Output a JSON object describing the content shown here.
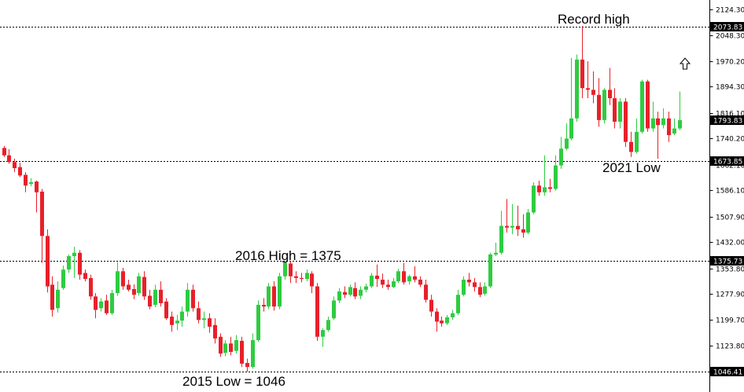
{
  "chart_data": {
    "type": "candlestick",
    "ylim": [
      1030,
      2140
    ],
    "grid": false,
    "colors": {
      "up": "#2ecc40",
      "down": "#e8202a",
      "axis": "#000000",
      "level_tag": "#000000"
    },
    "y_ticks": [
      2124.3,
      2048.3,
      1970.2,
      1894.3,
      1816.1,
      1740.2,
      1662.1,
      1586.1,
      1507.9,
      1432.0,
      1353.8,
      1277.9,
      1199.7,
      1123.8,
      1046.41
    ],
    "y_tick_labels": [
      "2124.30",
      "2048.30",
      "1970.20",
      "1894.30",
      "1816.10",
      "1740.20",
      "1662.10",
      "1586.10",
      "1507.90",
      "1432.00",
      "1353.80",
      "1277.90",
      "1199.70",
      "1123.80",
      "1046.41"
    ],
    "levels": [
      {
        "value": 2073.83,
        "label": "2073.83"
      },
      {
        "value": 1673.85,
        "label": "1673.85"
      },
      {
        "value": 1375.73,
        "label": "1375.73"
      },
      {
        "value": 1046.41,
        "label": "1046.41"
      }
    ],
    "last_price": {
      "value": 1793.83,
      "label": "1793.83"
    },
    "annotations": [
      {
        "text": "Record high"
      },
      {
        "text": "2021 Low"
      },
      {
        "text": "2016 High = 1375"
      },
      {
        "text": "2015 Low = 1046"
      }
    ],
    "candles": [
      [
        1712,
        1718,
        1690,
        1685
      ],
      [
        1690,
        1708,
        1670,
        1665
      ],
      [
        1670,
        1680,
        1652,
        1640
      ],
      [
        1655,
        1668,
        1630,
        1625
      ],
      [
        1632,
        1640,
        1600,
        1580
      ],
      [
        1605,
        1622,
        1610,
        1598
      ],
      [
        1612,
        1615,
        1580,
        1520
      ],
      [
        1582,
        1590,
        1450,
        1370
      ],
      [
        1450,
        1470,
        1300,
        1282
      ],
      [
        1305,
        1330,
        1230,
        1210
      ],
      [
        1235,
        1315,
        1290,
        1222
      ],
      [
        1295,
        1362,
        1350,
        1290
      ],
      [
        1350,
        1395,
        1390,
        1340
      ],
      [
        1390,
        1418,
        1400,
        1325
      ],
      [
        1400,
        1408,
        1335,
        1320
      ],
      [
        1340,
        1350,
        1322,
        1315
      ],
      [
        1325,
        1335,
        1270,
        1260
      ],
      [
        1270,
        1280,
        1230,
        1205
      ],
      [
        1235,
        1265,
        1255,
        1225
      ],
      [
        1258,
        1275,
        1220,
        1215
      ],
      [
        1220,
        1290,
        1280,
        1215
      ],
      [
        1280,
        1372,
        1345,
        1272
      ],
      [
        1345,
        1355,
        1300,
        1290
      ],
      [
        1305,
        1320,
        1290,
        1285
      ],
      [
        1292,
        1306,
        1275,
        1262
      ],
      [
        1280,
        1340,
        1330,
        1272
      ],
      [
        1328,
        1345,
        1270,
        1260
      ],
      [
        1272,
        1290,
        1240,
        1232
      ],
      [
        1245,
        1305,
        1290,
        1238
      ],
      [
        1290,
        1315,
        1250,
        1240
      ],
      [
        1255,
        1265,
        1205,
        1200
      ],
      [
        1210,
        1225,
        1185,
        1165
      ],
      [
        1190,
        1215,
        1198,
        1170
      ],
      [
        1198,
        1240,
        1225,
        1180
      ],
      [
        1225,
        1310,
        1290,
        1210
      ],
      [
        1290,
        1305,
        1235,
        1225
      ],
      [
        1235,
        1255,
        1200,
        1190
      ],
      [
        1200,
        1225,
        1205,
        1175
      ],
      [
        1205,
        1220,
        1180,
        1162
      ],
      [
        1185,
        1205,
        1145,
        1130
      ],
      [
        1150,
        1160,
        1100,
        1090
      ],
      [
        1102,
        1140,
        1130,
        1092
      ],
      [
        1130,
        1150,
        1105,
        1095
      ],
      [
        1108,
        1155,
        1140,
        1100
      ],
      [
        1138,
        1150,
        1070,
        1060
      ],
      [
        1072,
        1085,
        1060,
        1046
      ],
      [
        1060,
        1160,
        1140,
        1055
      ],
      [
        1140,
        1258,
        1245,
        1135
      ],
      [
        1245,
        1265,
        1240,
        1225
      ],
      [
        1240,
        1310,
        1300,
        1232
      ],
      [
        1300,
        1315,
        1240,
        1228
      ],
      [
        1240,
        1340,
        1330,
        1232
      ],
      [
        1330,
        1375,
        1370,
        1320
      ],
      [
        1368,
        1375,
        1330,
        1310
      ],
      [
        1330,
        1345,
        1325,
        1310
      ],
      [
        1325,
        1340,
        1322,
        1312
      ],
      [
        1322,
        1350,
        1340,
        1315
      ],
      [
        1338,
        1345,
        1300,
        1280
      ],
      [
        1300,
        1310,
        1150,
        1138
      ],
      [
        1150,
        1175,
        1170,
        1120
      ],
      [
        1170,
        1210,
        1200,
        1165
      ],
      [
        1205,
        1270,
        1258,
        1200
      ],
      [
        1258,
        1295,
        1285,
        1250
      ],
      [
        1283,
        1300,
        1275,
        1265
      ],
      [
        1275,
        1305,
        1298,
        1270
      ],
      [
        1295,
        1312,
        1270,
        1262
      ],
      [
        1272,
        1300,
        1290,
        1262
      ],
      [
        1290,
        1308,
        1300,
        1282
      ],
      [
        1300,
        1340,
        1332,
        1295
      ],
      [
        1332,
        1365,
        1322,
        1298
      ],
      [
        1320,
        1338,
        1305,
        1295
      ],
      [
        1305,
        1320,
        1298,
        1290
      ],
      [
        1298,
        1325,
        1315,
        1295
      ],
      [
        1315,
        1352,
        1345,
        1310
      ],
      [
        1345,
        1370,
        1312,
        1305
      ],
      [
        1315,
        1335,
        1330,
        1305
      ],
      [
        1330,
        1360,
        1320,
        1312
      ],
      [
        1320,
        1330,
        1305,
        1298
      ],
      [
        1305,
        1320,
        1260,
        1252
      ],
      [
        1260,
        1275,
        1225,
        1210
      ],
      [
        1225,
        1235,
        1195,
        1165
      ],
      [
        1198,
        1210,
        1190,
        1180
      ],
      [
        1190,
        1215,
        1208,
        1185
      ],
      [
        1208,
        1230,
        1220,
        1200
      ],
      [
        1220,
        1290,
        1275,
        1215
      ],
      [
        1275,
        1330,
        1320,
        1270
      ],
      [
        1320,
        1340,
        1312,
        1300
      ],
      [
        1312,
        1325,
        1298,
        1285
      ],
      [
        1298,
        1312,
        1275,
        1268
      ],
      [
        1278,
        1312,
        1300,
        1272
      ],
      [
        1300,
        1400,
        1395,
        1295
      ],
      [
        1395,
        1430,
        1400,
        1390
      ],
      [
        1400,
        1525,
        1480,
        1395
      ],
      [
        1480,
        1560,
        1475,
        1460
      ],
      [
        1475,
        1545,
        1480,
        1455
      ],
      [
        1480,
        1540,
        1470,
        1450
      ],
      [
        1470,
        1515,
        1460,
        1445
      ],
      [
        1460,
        1530,
        1520,
        1455
      ],
      [
        1520,
        1610,
        1600,
        1515
      ],
      [
        1600,
        1615,
        1580,
        1570
      ],
      [
        1580,
        1690,
        1595,
        1570
      ],
      [
        1595,
        1620,
        1590,
        1580
      ],
      [
        1590,
        1690,
        1660,
        1585
      ],
      [
        1660,
        1745,
        1710,
        1650
      ],
      [
        1710,
        1785,
        1740,
        1705
      ],
      [
        1740,
        1980,
        1800,
        1735
      ],
      [
        1800,
        1990,
        1975,
        1790
      ],
      [
        1975,
        2075,
        1890,
        1860
      ],
      [
        1890,
        1970,
        1885,
        1860
      ],
      [
        1885,
        1940,
        1870,
        1845
      ],
      [
        1870,
        1920,
        1795,
        1775
      ],
      [
        1795,
        1890,
        1885,
        1785
      ],
      [
        1885,
        1950,
        1860,
        1840
      ],
      [
        1860,
        1890,
        1790,
        1770
      ],
      [
        1790,
        1860,
        1850,
        1770
      ],
      [
        1850,
        1860,
        1730,
        1715
      ],
      [
        1730,
        1760,
        1700,
        1685
      ],
      [
        1700,
        1800,
        1760,
        1695
      ],
      [
        1760,
        1915,
        1910,
        1755
      ],
      [
        1910,
        1915,
        1770,
        1760
      ],
      [
        1770,
        1850,
        1800,
        1760
      ],
      [
        1800,
        1820,
        1780,
        1680
      ],
      [
        1780,
        1830,
        1800,
        1770
      ],
      [
        1800,
        1820,
        1750,
        1730
      ],
      [
        1755,
        1800,
        1770,
        1750
      ],
      [
        1770,
        1880,
        1795,
        1765
      ]
    ]
  },
  "widgets": {
    "cursor_icon": "up-arrow-outline-icon"
  }
}
